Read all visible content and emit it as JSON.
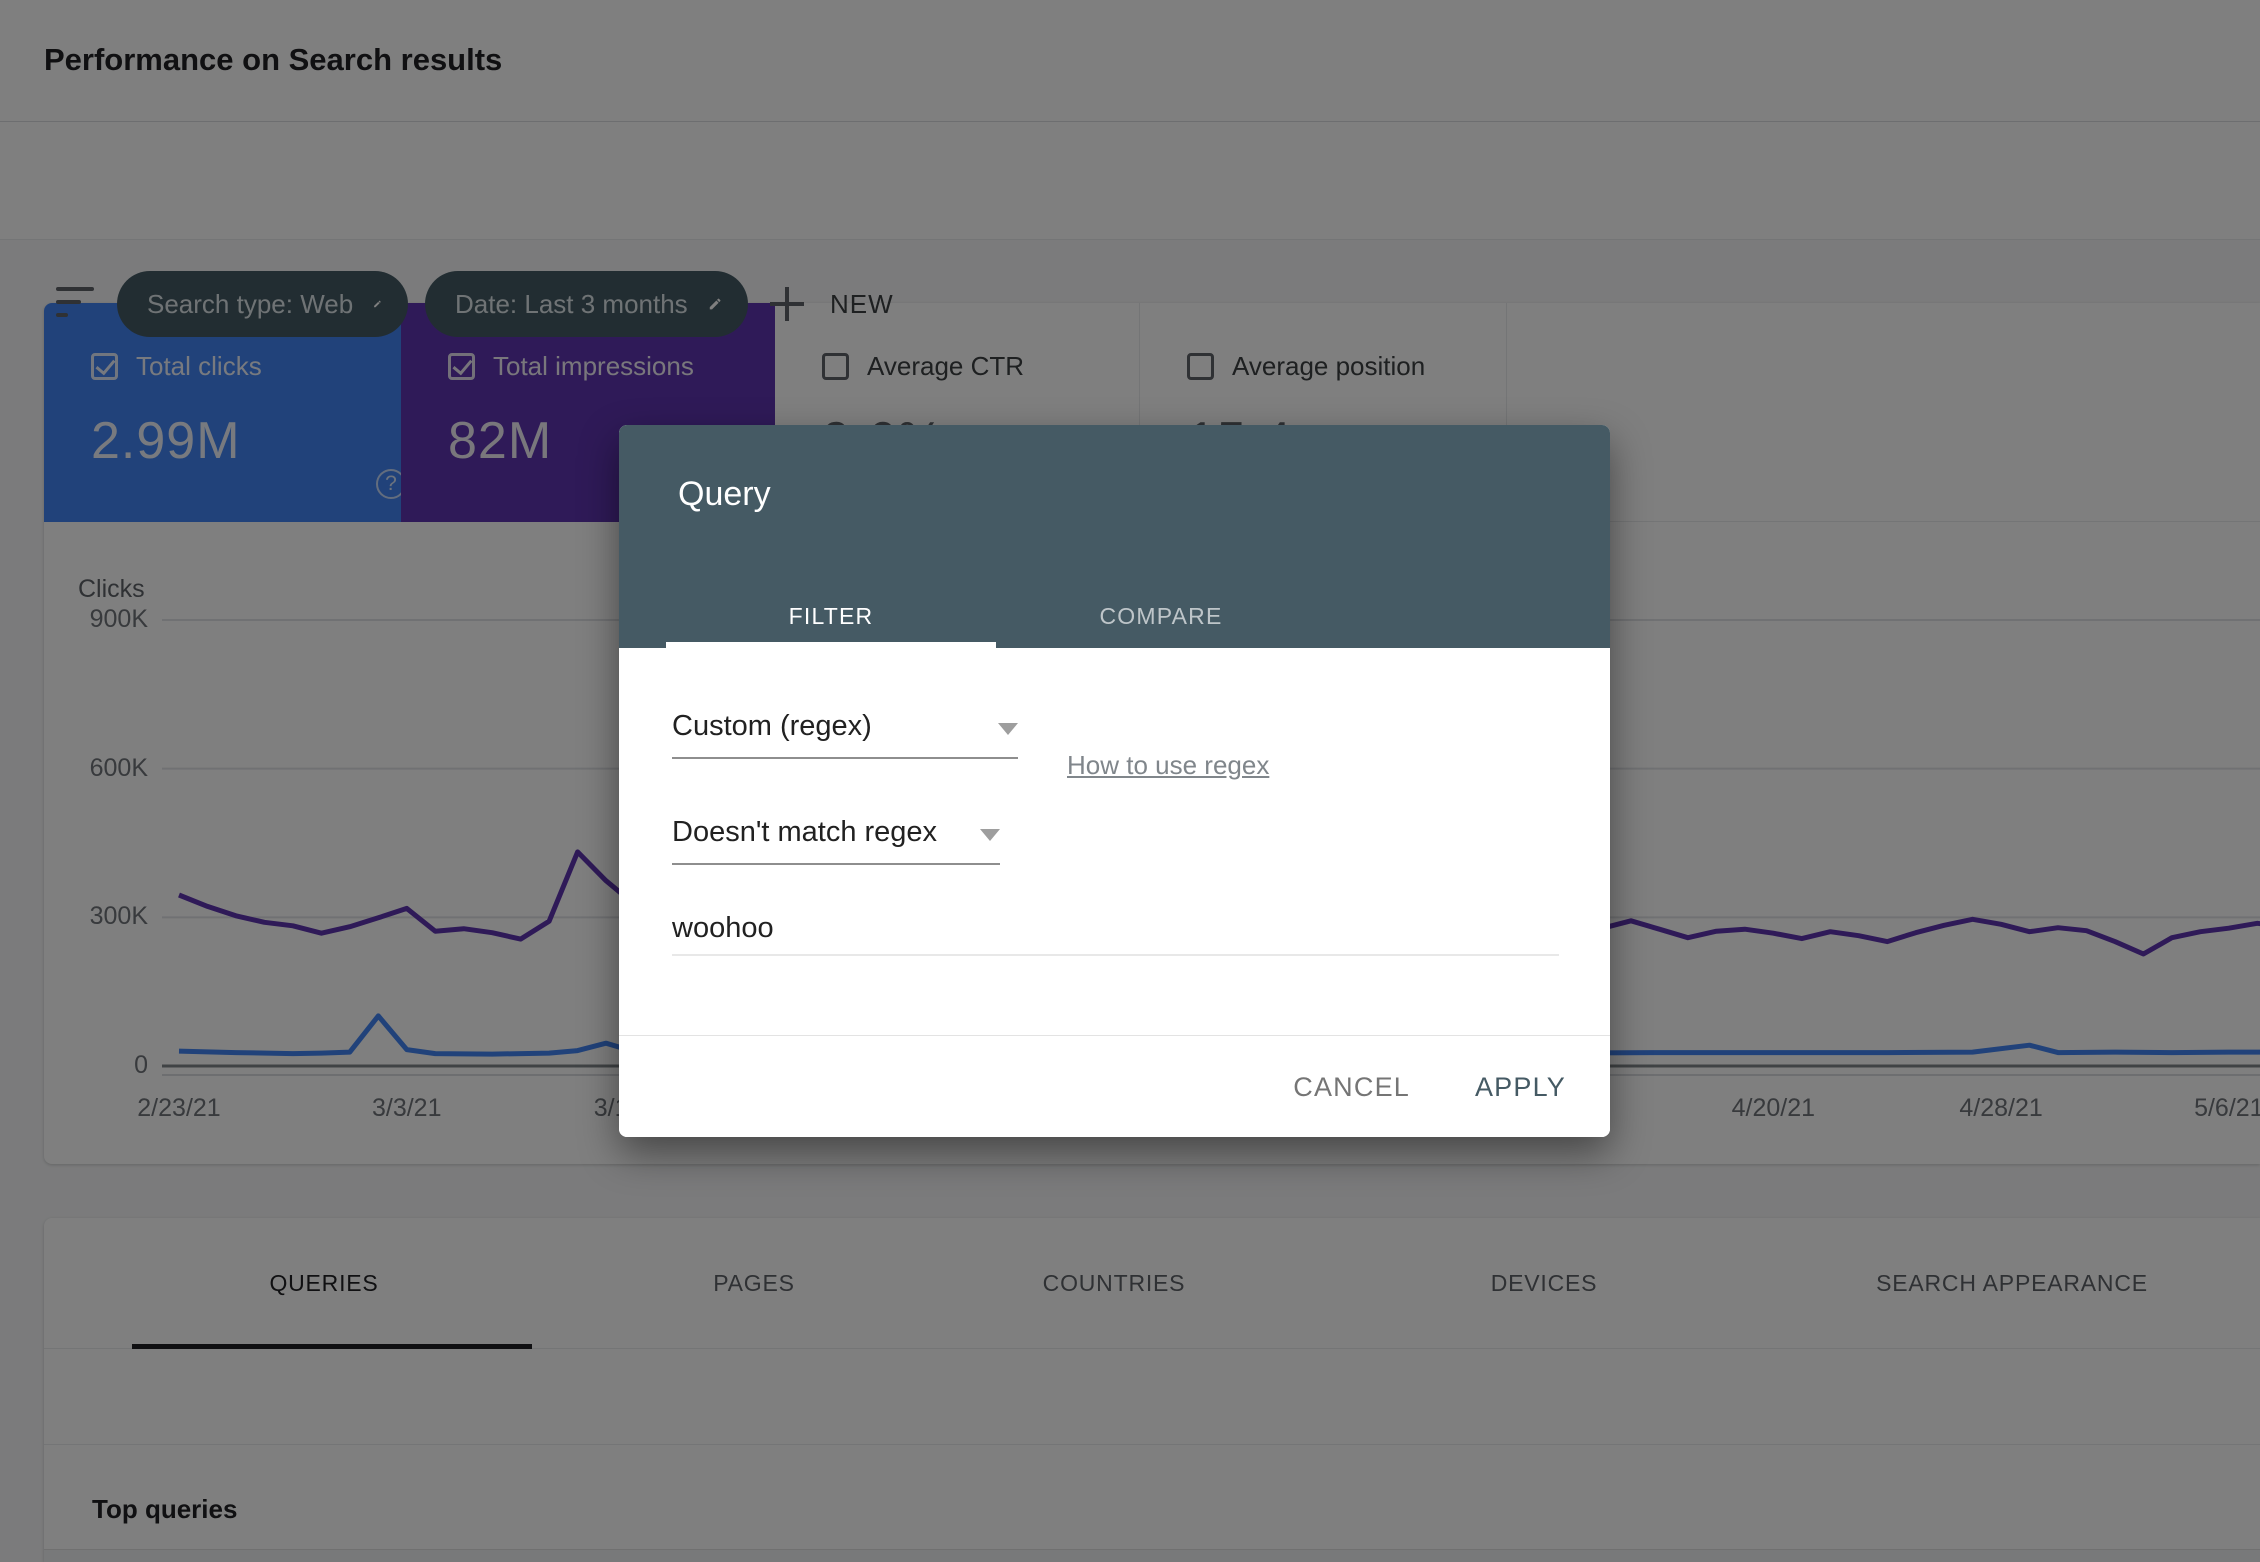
{
  "header": {
    "title": "Performance on Search results"
  },
  "filters": {
    "search_type_chip": "Search type: Web",
    "date_chip": "Date: Last 3 months",
    "new_button": "NEW"
  },
  "metrics": [
    {
      "label": "Total clicks",
      "value": "2.99M",
      "selected": true,
      "color": "#4285f4"
    },
    {
      "label": "Total impressions",
      "value": "82M",
      "selected": true,
      "color": "#5e35b1"
    },
    {
      "label": "Average CTR",
      "value": "9.6%",
      "selected": false
    },
    {
      "label": "Average position",
      "value": "15.4",
      "selected": false
    }
  ],
  "dimension_tabs": {
    "labels": [
      "QUERIES",
      "PAGES",
      "COUNTRIES",
      "DEVICES",
      "SEARCH APPEARANCE"
    ],
    "active": "QUERIES"
  },
  "table": {
    "section_title": "Top queries"
  },
  "dialog": {
    "title": "Query",
    "tabs": {
      "filter": "FILTER",
      "compare": "COMPARE",
      "active": "FILTER"
    },
    "fields": {
      "type_select": "Custom (regex)",
      "regex_help_link": "How to use regex",
      "operator_select": "Doesn't match regex",
      "value_input": "woohoo"
    },
    "buttons": {
      "cancel": "CANCEL",
      "apply": "APPLY"
    }
  },
  "icons": {
    "filter": "filter-list-icon",
    "edit": "pencil-icon",
    "add": "plus-icon",
    "help": "question-circle-icon",
    "dropdown": "caret-down-icon"
  },
  "colors": {
    "clicks_blue": "#4285f4",
    "impressions_purple": "#5e35b1",
    "chip_and_dialog_header": "#455a64",
    "scrim": "rgba(0,0,0,0.5)"
  },
  "chart_data": {
    "type": "line",
    "ylabel": "Clicks",
    "ylim": [
      0,
      900000
    ],
    "y_unit_of_points": "thousands",
    "grid": true,
    "y_ticks": [
      {
        "label": "0",
        "value": 0
      },
      {
        "label": "300K",
        "value": 300000
      },
      {
        "label": "600K",
        "value": 600000
      },
      {
        "label": "900K",
        "value": 900000
      }
    ],
    "x_ticks": [
      {
        "label": "2/23/21",
        "day": 0
      },
      {
        "label": "3/3/21",
        "day": 8
      },
      {
        "label": "3/11/21",
        "day": 16
      },
      {
        "label": "4/20/21",
        "day": 56
      },
      {
        "label": "4/28/21",
        "day": 64
      },
      {
        "label": "5/6/21",
        "day": 72
      }
    ],
    "total_days": 77,
    "series": [
      {
        "name": "Total impressions",
        "color": "#5e35b1",
        "points": [
          [
            0,
            345
          ],
          [
            1,
            322
          ],
          [
            2,
            303
          ],
          [
            3,
            290
          ],
          [
            4,
            283
          ],
          [
            5,
            268
          ],
          [
            6,
            281
          ],
          [
            7,
            299
          ],
          [
            8,
            318
          ],
          [
            9,
            272
          ],
          [
            10,
            277
          ],
          [
            11,
            269
          ],
          [
            12,
            256
          ],
          [
            13,
            292
          ],
          [
            14,
            432
          ],
          [
            15,
            374
          ],
          [
            16,
            326
          ],
          [
            17,
            307
          ],
          [
            18,
            297
          ],
          [
            20,
            289
          ],
          [
            22,
            297
          ],
          [
            24,
            285
          ],
          [
            26,
            291
          ],
          [
            28,
            280
          ],
          [
            30,
            287
          ],
          [
            32,
            277
          ],
          [
            34,
            284
          ],
          [
            36,
            289
          ],
          [
            38,
            279
          ],
          [
            40,
            285
          ],
          [
            42,
            282
          ],
          [
            44,
            286
          ],
          [
            46,
            272
          ],
          [
            48,
            288
          ],
          [
            50,
            278
          ],
          [
            51,
            293
          ],
          [
            52,
            276
          ],
          [
            53,
            259
          ],
          [
            54,
            272
          ],
          [
            55,
            276
          ],
          [
            56,
            268
          ],
          [
            57,
            257
          ],
          [
            58,
            271
          ],
          [
            59,
            263
          ],
          [
            60,
            251
          ],
          [
            61,
            269
          ],
          [
            62,
            284
          ],
          [
            63,
            296
          ],
          [
            64,
            286
          ],
          [
            65,
            271
          ],
          [
            66,
            279
          ],
          [
            67,
            273
          ],
          [
            68,
            251
          ],
          [
            69,
            226
          ],
          [
            70,
            259
          ],
          [
            71,
            271
          ],
          [
            72,
            278
          ],
          [
            73,
            288
          ],
          [
            74,
            282
          ],
          [
            75,
            273
          ],
          [
            76,
            261
          ],
          [
            77,
            216
          ]
        ]
      },
      {
        "name": "Total clicks",
        "color": "#4285f4",
        "points": [
          [
            0,
            30
          ],
          [
            2,
            27
          ],
          [
            4,
            25
          ],
          [
            5,
            26
          ],
          [
            6,
            28
          ],
          [
            7,
            101
          ],
          [
            8,
            33
          ],
          [
            9,
            25
          ],
          [
            11,
            24
          ],
          [
            13,
            26
          ],
          [
            14,
            31
          ],
          [
            15,
            46
          ],
          [
            16,
            29
          ],
          [
            18,
            26
          ],
          [
            20,
            25
          ],
          [
            24,
            26
          ],
          [
            28,
            25
          ],
          [
            32,
            26
          ],
          [
            36,
            25
          ],
          [
            40,
            26
          ],
          [
            44,
            27
          ],
          [
            48,
            26
          ],
          [
            52,
            27
          ],
          [
            56,
            27
          ],
          [
            60,
            27
          ],
          [
            63,
            28
          ],
          [
            65,
            42
          ],
          [
            66,
            27
          ],
          [
            68,
            28
          ],
          [
            70,
            27
          ],
          [
            72,
            28
          ],
          [
            74,
            28
          ],
          [
            76,
            27
          ],
          [
            77,
            26
          ]
        ]
      }
    ]
  }
}
